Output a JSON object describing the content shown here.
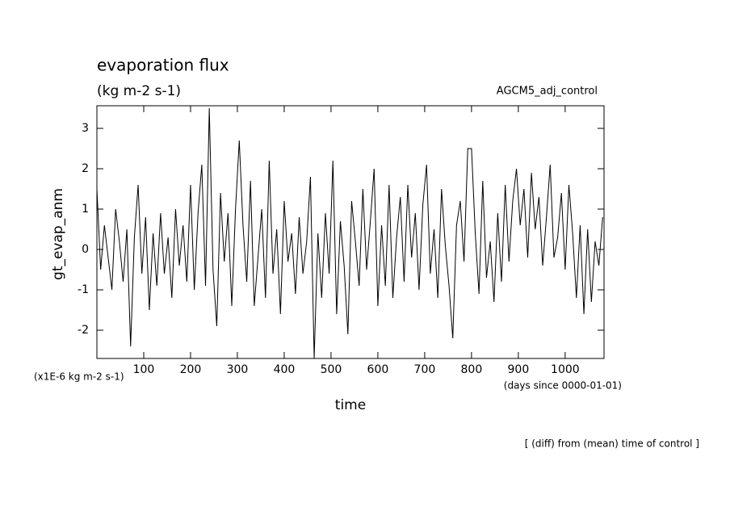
{
  "chart_data": {
    "type": "line",
    "title": "evaporation flux",
    "subtitle": "(kg m-2 s-1)",
    "annotation": "AGCM5_adj_control",
    "ylabel": "gt_evap_anm",
    "yunits": "(x1E-6 kg m-2 s-1)",
    "xunits": "(days since 0000-01-01)",
    "xlabel": "time",
    "footnote": "[ (diff) from (mean) time of control ]",
    "xlim": [
      0,
      1083
    ],
    "ylim": [
      -2.7,
      3.56
    ],
    "xticks": [
      100,
      200,
      300,
      400,
      500,
      600,
      700,
      800,
      900,
      1000
    ],
    "yticks": [
      -2,
      -1,
      0,
      1,
      2,
      3
    ],
    "x": [
      0,
      8,
      16,
      24,
      32,
      40,
      48,
      56,
      64,
      72,
      80,
      88,
      96,
      104,
      112,
      120,
      128,
      136,
      144,
      152,
      160,
      168,
      176,
      184,
      192,
      200,
      208,
      216,
      224,
      232,
      240,
      248,
      256,
      264,
      272,
      280,
      288,
      296,
      304,
      312,
      320,
      328,
      336,
      344,
      352,
      360,
      368,
      376,
      384,
      392,
      400,
      408,
      416,
      424,
      432,
      440,
      448,
      456,
      464,
      472,
      480,
      488,
      496,
      504,
      512,
      520,
      528,
      536,
      544,
      552,
      560,
      568,
      576,
      584,
      592,
      600,
      608,
      616,
      624,
      632,
      640,
      648,
      656,
      664,
      672,
      680,
      688,
      696,
      704,
      712,
      720,
      728,
      736,
      744,
      752,
      760,
      768,
      776,
      784,
      792,
      800,
      808,
      816,
      824,
      832,
      840,
      848,
      856,
      864,
      872,
      880,
      888,
      896,
      904,
      912,
      920,
      928,
      936,
      944,
      952,
      960,
      968,
      976,
      984,
      992,
      1000,
      1008,
      1016,
      1024,
      1032,
      1040,
      1048,
      1056,
      1064,
      1072,
      1080
    ],
    "series": [
      {
        "name": "gt_evap_anm",
        "color": "#000000",
        "values": [
          1.5,
          -0.5,
          0.6,
          -0.2,
          -1.0,
          1.0,
          0.2,
          -0.8,
          0.5,
          -2.4,
          0.3,
          1.6,
          -0.6,
          0.8,
          -1.5,
          0.4,
          -0.9,
          0.9,
          -0.6,
          0.3,
          -1.2,
          1.0,
          -0.4,
          0.6,
          -0.8,
          1.6,
          -1.0,
          0.9,
          2.1,
          -0.9,
          3.5,
          -0.5,
          -1.9,
          1.4,
          -0.3,
          0.9,
          -1.4,
          1.0,
          2.7,
          0.6,
          -0.8,
          1.7,
          -1.4,
          -0.2,
          1.0,
          -1.2,
          2.2,
          -0.6,
          0.5,
          -1.6,
          1.2,
          -0.3,
          0.4,
          -1.1,
          0.8,
          -0.6,
          0.2,
          1.8,
          -2.7,
          0.4,
          -1.2,
          0.9,
          -0.6,
          2.2,
          -1.6,
          0.7,
          -0.4,
          -2.1,
          1.2,
          0.2,
          -0.9,
          1.5,
          -0.5,
          0.7,
          2.0,
          -1.4,
          0.6,
          -0.9,
          1.6,
          -1.2,
          0.3,
          1.3,
          -0.8,
          1.6,
          -0.2,
          0.9,
          -1.0,
          1.1,
          2.1,
          -0.6,
          0.5,
          -1.2,
          1.5,
          0.1,
          -0.9,
          -2.2,
          0.6,
          1.2,
          -0.3,
          2.5,
          2.5,
          0.4,
          -1.1,
          1.7,
          -0.7,
          0.2,
          -1.3,
          0.9,
          -0.8,
          1.6,
          -0.3,
          1.2,
          2.0,
          0.6,
          1.5,
          -0.2,
          1.9,
          0.5,
          1.3,
          -0.4,
          0.8,
          2.1,
          -0.2,
          0.3,
          1.4,
          -0.5,
          1.6,
          0.4,
          -1.2,
          0.6,
          -1.6,
          0.5,
          -1.3,
          0.2,
          -0.4,
          0.8
        ]
      }
    ]
  }
}
